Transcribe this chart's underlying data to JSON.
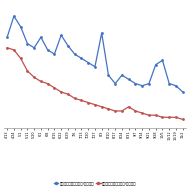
{
  "blue_values": [
    148,
    158,
    153,
    145,
    143,
    148,
    142,
    140,
    149,
    144,
    140,
    138,
    136,
    134,
    150,
    130,
    126,
    130,
    128,
    126,
    125,
    126,
    135,
    137,
    126,
    125,
    122
  ],
  "red_values": [
    143,
    142,
    138,
    132,
    129,
    127,
    126,
    124,
    122,
    121,
    119,
    118,
    117,
    116,
    115,
    114,
    113,
    113,
    115,
    113,
    112,
    111,
    111,
    110,
    110,
    110,
    109
  ],
  "x_labels": [
    "4/13",
    "4/24",
    "5/1",
    "5/11",
    "5/20",
    "6/1",
    "6/8",
    "6/15",
    "6/22",
    "6/29",
    "7/6",
    "7/13",
    "7/20",
    "7/27",
    "8/3",
    "8/10",
    "8/17",
    "8/24",
    "8/31",
    "9/7",
    "9/14",
    "9/21",
    "9/28",
    "10/5",
    "10/12",
    "10/19",
    "11/2"
  ],
  "blue_color": "#4472C4",
  "red_color": "#C0504D",
  "legend_blue": "レギュラー最高価格円/リットル",
  "legend_red": "レギュラー実売価格円/リットル",
  "bg_color": "#ffffff",
  "grid_color": "#cccccc",
  "ylim_min": 105,
  "ylim_max": 163,
  "yticks": [
    110,
    120,
    130,
    140,
    150,
    160
  ]
}
